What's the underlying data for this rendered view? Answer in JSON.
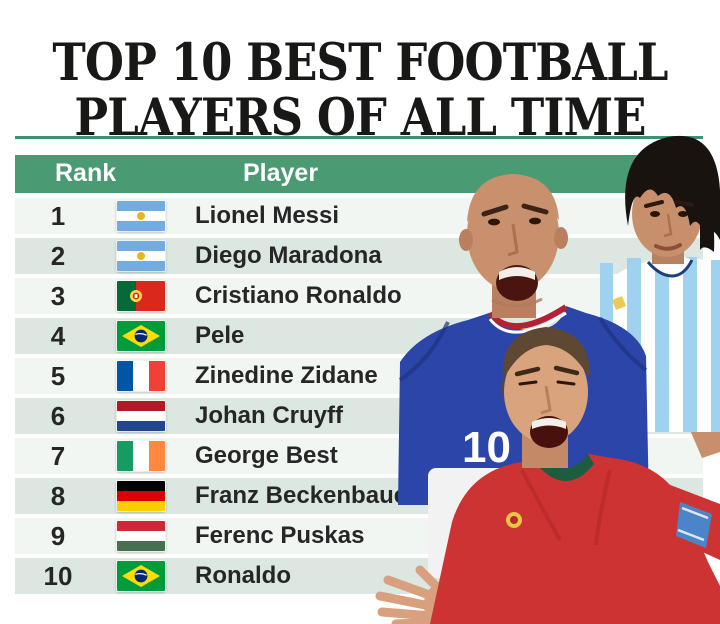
{
  "title": {
    "line1": "TOP 10 BEST FOOTBALL",
    "line2": "PLAYERS OF ALL TIME"
  },
  "table": {
    "headers": {
      "rank": "Rank",
      "player": "Player"
    },
    "rows": [
      {
        "rank": "1",
        "country": "argentina",
        "player": "Lionel Messi"
      },
      {
        "rank": "2",
        "country": "argentina",
        "player": "Diego Maradona"
      },
      {
        "rank": "3",
        "country": "portugal",
        "player": "Cristiano Ronaldo"
      },
      {
        "rank": "4",
        "country": "brazil",
        "player": "Pele"
      },
      {
        "rank": "5",
        "country": "france",
        "player": "Zinedine Zidane"
      },
      {
        "rank": "6",
        "country": "netherlands",
        "player": "Johan Cruyff"
      },
      {
        "rank": "7",
        "country": "ireland",
        "player": "George Best"
      },
      {
        "rank": "8",
        "country": "germany",
        "player": "Franz Beckenbauer"
      },
      {
        "rank": "9",
        "country": "hungary",
        "player": "Ferenc Puskas"
      },
      {
        "rank": "10",
        "country": "brazil",
        "player": "Ronaldo"
      }
    ]
  },
  "photos": [
    "zinedine-zidane-france-blue-kit",
    "diego-maradona-argentina-kit",
    "cristiano-ronaldo-portugal-red-kit"
  ],
  "colors": {
    "header_green": "#4A9A74",
    "divider_teal": "#3E9077",
    "row_light": "#F1F6F2",
    "row_dark": "#DBE7E0",
    "title_black": "#181816",
    "text_dark": "#262626"
  },
  "chart_data": {
    "type": "table",
    "title": "TOP 10 BEST FOOTBALL PLAYERS OF ALL TIME",
    "columns": [
      "Rank",
      "Player"
    ],
    "rows": [
      [
        "1",
        "Lionel Messi"
      ],
      [
        "2",
        "Diego Maradona"
      ],
      [
        "3",
        "Cristiano Ronaldo"
      ],
      [
        "4",
        "Pele"
      ],
      [
        "5",
        "Zinedine Zidane"
      ],
      [
        "6",
        "Johan Cruyff"
      ],
      [
        "7",
        "George Best"
      ],
      [
        "8",
        "Franz Beckenbauer"
      ],
      [
        "9",
        "Ferenc Puskas"
      ],
      [
        "10",
        "Ronaldo"
      ]
    ]
  }
}
